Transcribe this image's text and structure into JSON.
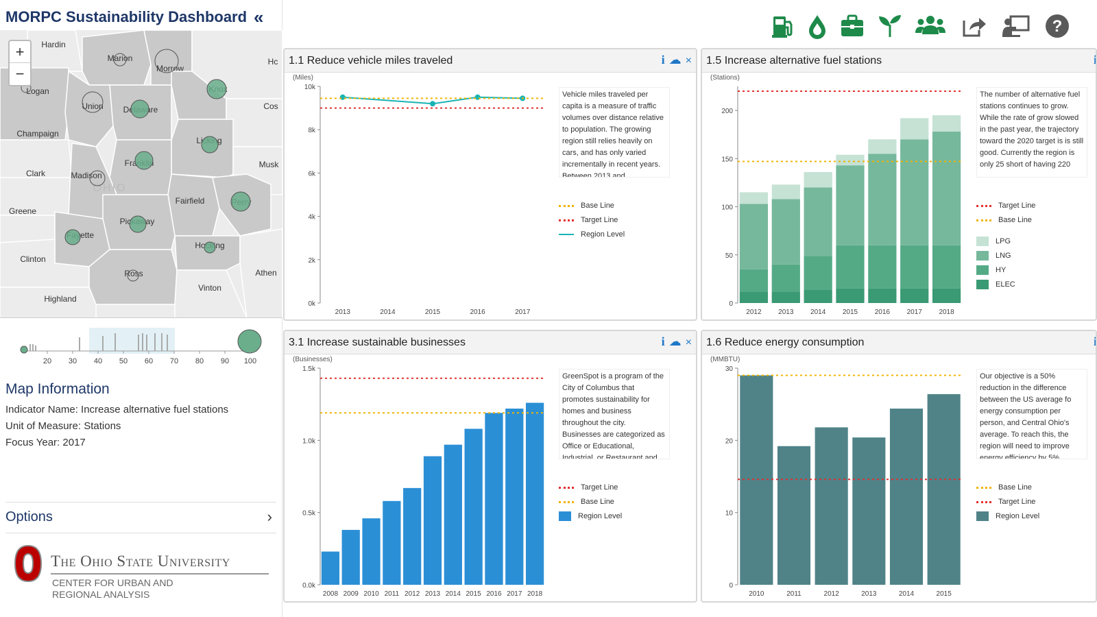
{
  "app": {
    "title": "MORPC Sustainability Dashboard",
    "collapse_label": "«"
  },
  "map": {
    "zoom_in": "+",
    "zoom_out": "−",
    "watermark": "OHIO",
    "counties": [
      {
        "name": "Hardin",
        "fill": "#ececec"
      },
      {
        "name": "Marion",
        "fill": "#c9c9c9"
      },
      {
        "name": "Morrow",
        "fill": "#c9c9c9"
      },
      {
        "name": "Hc",
        "fill": "#ececec"
      },
      {
        "name": "Logan",
        "fill": "#c9c9c9"
      },
      {
        "name": "Union",
        "fill": "#c9c9c9"
      },
      {
        "name": "Delaware",
        "fill": "#c9c9c9"
      },
      {
        "name": "Knox",
        "fill": "#c9c9c9"
      },
      {
        "name": "Cos",
        "fill": "#ececec"
      },
      {
        "name": "Champaign",
        "fill": "#ececec"
      },
      {
        "name": "Licking",
        "fill": "#c9c9c9"
      },
      {
        "name": "Franklin",
        "fill": "#c9c9c9"
      },
      {
        "name": "Clark",
        "fill": "#ececec"
      },
      {
        "name": "Madison",
        "fill": "#c9c9c9"
      },
      {
        "name": "Musk",
        "fill": "#ececec"
      },
      {
        "name": "Fairfield",
        "fill": "#c9c9c9"
      },
      {
        "name": "Perry",
        "fill": "#c9c9c9"
      },
      {
        "name": "Greene",
        "fill": "#ececec"
      },
      {
        "name": "Pickaway",
        "fill": "#c9c9c9"
      },
      {
        "name": "Fayette",
        "fill": "#c9c9c9"
      },
      {
        "name": "Hocking",
        "fill": "#c9c9c9"
      },
      {
        "name": "Clinton",
        "fill": "#ececec"
      },
      {
        "name": "Ross",
        "fill": "#c9c9c9"
      },
      {
        "name": "Athen",
        "fill": "#ececec"
      },
      {
        "name": "Vinton",
        "fill": "#ececec"
      },
      {
        "name": "Highland",
        "fill": "#ececec"
      }
    ]
  },
  "slider": {
    "ticks": [
      "20",
      "30",
      "40",
      "50",
      "60",
      "70",
      "80",
      "90",
      "100"
    ]
  },
  "map_info": {
    "title": "Map Information",
    "indicator": "Indicator Name: Increase alternative fuel stations",
    "unit": "Unit of Measure: Stations",
    "focus_year": "Focus Year: 2017"
  },
  "options": {
    "label": "Options",
    "chevron": "›"
  },
  "logo": {
    "university": "The Ohio State University",
    "center_line1": "CENTER FOR URBAN AND",
    "center_line2": "REGIONAL ANALYSIS"
  },
  "toolbar": {
    "icons": [
      "fuel-pump-icon",
      "water-drop-icon",
      "briefcase-icon",
      "sprout-icon",
      "people-icon",
      "share-icon",
      "presentation-icon",
      "help-icon"
    ],
    "color": "#1e8a4a"
  },
  "panels": {
    "vmt": {
      "title": "1.1 Reduce vehicle miles traveled",
      "info": "i",
      "cloud": "☁",
      "close": "×",
      "description": "Vehicle miles traveled per capita is a measure of traffic volumes over distance relative to population. The growing region still relies heavily on cars, and has only varied incrementally in recent years. Between 2013 and",
      "legend": [
        "Base Line",
        "Target Line",
        "Region Level"
      ]
    },
    "fuel": {
      "title": "1.5 Increase alternative fuel stations",
      "info": "i",
      "description": "The number of alternative fuel stations continues to grow. While the rate of grow slowed in the past year, the trajectory toward the 2020 target is is still good. Currently the region is only 25 short of having 220",
      "legend": [
        "Target Line",
        "Base Line",
        "LPG",
        "LNG",
        "HY",
        "ELEC"
      ]
    },
    "biz": {
      "title": "3.1 Increase sustainable businesses",
      "info": "i",
      "cloud": "☁",
      "close": "×",
      "description": "GreenSpot is a program of the City of Columbus that promotes sustainability for homes and business throughout the city. Businesses are categorized as Office or Educational, Industrial, or Restaurant and",
      "legend": [
        "Target Line",
        "Base Line",
        "Region Level"
      ]
    },
    "energy": {
      "title": "1.6 Reduce energy consumption",
      "info": "i",
      "description": "Our objective is a 50% reduction in the difference between the US average fo energy consumption per person, and Central Ohio's average. To reach this, the region will need to improve energy efficiency by 5%",
      "legend": [
        "Base Line",
        "Target Line",
        "Region Level"
      ]
    }
  },
  "chart_data": [
    {
      "id": "vmt",
      "type": "line",
      "ylabel": "(Miles)",
      "categories": [
        "2013",
        "2014",
        "2015",
        "2016",
        "2017"
      ],
      "y_ticks": [
        "0k",
        "2k",
        "4k",
        "6k",
        "8k",
        "10k"
      ],
      "ylim": [
        0,
        10000
      ],
      "series": [
        {
          "name": "Region Level",
          "x": [
            "2013",
            "2015",
            "2016",
            "2017"
          ],
          "values": [
            9500,
            9200,
            9500,
            9450
          ],
          "color": "#19b3b3"
        }
      ],
      "base_line": 9450,
      "target_line": 9000
    },
    {
      "id": "fuel",
      "type": "bar",
      "stacked": true,
      "ylabel": "(Stations)",
      "categories": [
        "2012",
        "2013",
        "2014",
        "2015",
        "2016",
        "2017",
        "2018"
      ],
      "y_ticks": [
        "0",
        "50",
        "100",
        "150",
        "200"
      ],
      "ylim": [
        0,
        225
      ],
      "series": [
        {
          "name": "ELEC",
          "values": [
            12,
            12,
            14,
            15,
            15,
            15,
            15
          ],
          "color": "#3a9a73"
        },
        {
          "name": "HY",
          "values": [
            23,
            28,
            35,
            45,
            45,
            45,
            45
          ],
          "color": "#55aa86"
        },
        {
          "name": "LNG",
          "values": [
            68,
            68,
            71,
            83,
            95,
            110,
            118
          ],
          "color": "#76b89c"
        },
        {
          "name": "LPG",
          "values": [
            12,
            15,
            16,
            11,
            15,
            22,
            17
          ],
          "color": "#c5e2d5"
        }
      ],
      "target_line": 220,
      "base_line": 147
    },
    {
      "id": "biz",
      "type": "bar",
      "ylabel": "(Businesses)",
      "categories": [
        "2008",
        "2009",
        "2010",
        "2011",
        "2012",
        "2013",
        "2014",
        "2015",
        "2016",
        "2017",
        "2018"
      ],
      "y_ticks": [
        "0.0k",
        "0.5k",
        "1.0k",
        "1.5k"
      ],
      "ylim": [
        0,
        1500
      ],
      "series": [
        {
          "name": "Region Level",
          "values": [
            230,
            380,
            460,
            580,
            670,
            890,
            970,
            1080,
            1190,
            1220,
            1260
          ],
          "color": "#2b8fd6"
        }
      ],
      "target_line": 1430,
      "base_line": 1190
    },
    {
      "id": "energy",
      "type": "bar",
      "ylabel": "(MMBTU)",
      "categories": [
        "2010",
        "2011",
        "2012",
        "2013",
        "2014",
        "2015"
      ],
      "y_ticks": [
        "0",
        "10",
        "20",
        "30"
      ],
      "ylim": [
        0,
        30
      ],
      "series": [
        {
          "name": "Region Level",
          "values": [
            29,
            19.2,
            21.8,
            20.4,
            24.4,
            26.4
          ],
          "color": "#4f8388"
        }
      ],
      "base_line": 29,
      "target_line": 14.6
    }
  ]
}
